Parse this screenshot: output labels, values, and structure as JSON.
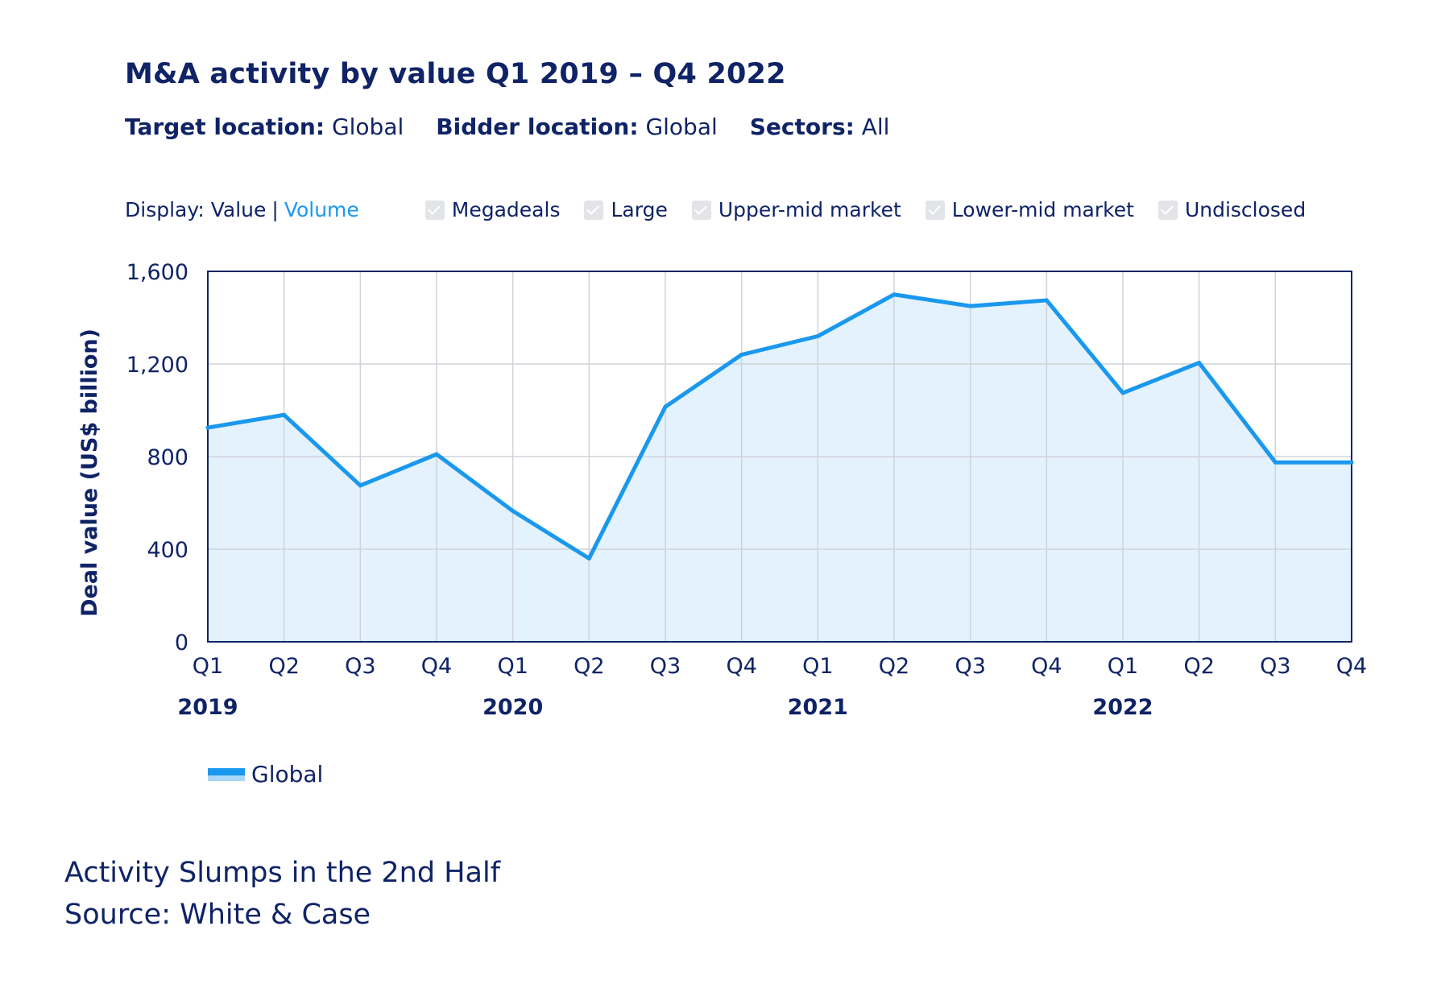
{
  "header": {
    "title": "M&A activity by value Q1 2019 – Q4 2022",
    "filters": [
      {
        "label": "Target location:",
        "value": "Global"
      },
      {
        "label": "Bidder location:",
        "value": "Global"
      },
      {
        "label": "Sectors:",
        "value": "All"
      }
    ]
  },
  "controls": {
    "display_label": "Display:",
    "display_value": "Value",
    "display_separator": "|",
    "display_volume": "Volume",
    "toggles": [
      "Megadeals",
      "Large",
      "Upper-mid market",
      "Lower-mid market",
      "Undisclosed"
    ]
  },
  "colors": {
    "line": "#1a98ee",
    "fill": "#e3f2fd",
    "text": "#0f2366",
    "grid": "#cfd3d8"
  },
  "chart_data": {
    "type": "area",
    "x": [
      "Q1",
      "Q2",
      "Q3",
      "Q4",
      "Q1",
      "Q2",
      "Q3",
      "Q4",
      "Q1",
      "Q2",
      "Q3",
      "Q4",
      "Q1",
      "Q2",
      "Q3",
      "Q4"
    ],
    "year_labels": [
      {
        "label": "2019",
        "index": 0
      },
      {
        "label": "2020",
        "index": 4
      },
      {
        "label": "2021",
        "index": 8
      },
      {
        "label": "2022",
        "index": 12
      }
    ],
    "series": [
      {
        "name": "Global",
        "values": [
          925,
          980,
          675,
          810,
          565,
          360,
          1015,
          1240,
          1320,
          1500,
          1450,
          1475,
          1075,
          1205,
          775,
          775
        ]
      }
    ],
    "ylabel": "Deal value (US$ billion)",
    "ylim": [
      0,
      1600
    ],
    "yticks": [
      0,
      400,
      800,
      1200,
      1600
    ],
    "grid": true,
    "legend": "bottom-left"
  },
  "footer": {
    "subtitle": "Activity Slumps in the 2nd Half",
    "source": "Source: White & Case"
  }
}
